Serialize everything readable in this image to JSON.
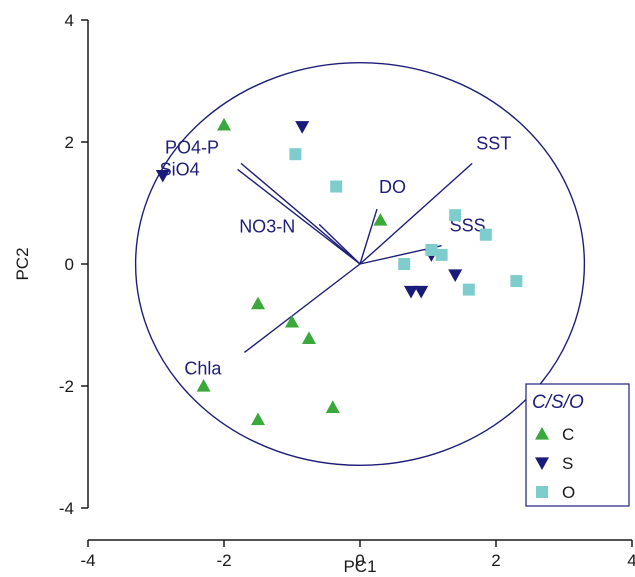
{
  "chart_data": {
    "type": "scatter",
    "title": "",
    "xlabel": "PC1",
    "ylabel": "PC2",
    "xlim": [
      -4,
      4
    ],
    "ylim": [
      -4,
      4
    ],
    "x_ticks": [
      "-4",
      "-2",
      "0",
      "2",
      "4"
    ],
    "y_ticks": [
      "-4",
      "-2",
      "0",
      "2",
      "4"
    ],
    "grid": false,
    "legend_position": "bottom-right",
    "legend_title": "C/S/O",
    "circle_radius": 3.3,
    "series": [
      {
        "name": "C",
        "marker": "triangle-up",
        "color": "#3aa83a",
        "points": [
          [
            -2.0,
            2.28
          ],
          [
            0.3,
            0.72
          ],
          [
            -1.5,
            -0.65
          ],
          [
            -1.0,
            -0.95
          ],
          [
            -0.75,
            -1.22
          ],
          [
            -2.3,
            -2.0
          ],
          [
            -1.5,
            -2.55
          ],
          [
            -0.4,
            -2.35
          ]
        ]
      },
      {
        "name": "S",
        "marker": "triangle-down",
        "color": "#1a1a7a",
        "points": [
          [
            -0.85,
            2.25
          ],
          [
            -2.9,
            1.45
          ],
          [
            1.05,
            0.15
          ],
          [
            1.4,
            -0.18
          ],
          [
            0.75,
            -0.45
          ],
          [
            0.9,
            -0.45
          ]
        ]
      },
      {
        "name": "O",
        "marker": "square",
        "color": "#7fcccc",
        "points": [
          [
            -0.95,
            1.8
          ],
          [
            -0.35,
            1.27
          ],
          [
            1.4,
            0.8
          ],
          [
            1.85,
            0.48
          ],
          [
            1.05,
            0.23
          ],
          [
            1.2,
            0.15
          ],
          [
            0.65,
            0.0
          ],
          [
            1.6,
            -0.42
          ],
          [
            2.3,
            -0.28
          ]
        ]
      }
    ],
    "vectors": [
      {
        "label": "PO4-P",
        "x": -1.75,
        "y": 1.65
      },
      {
        "label": "SiO4",
        "x": -1.8,
        "y": 1.55
      },
      {
        "label": "NO3-N",
        "x": -0.6,
        "y": 0.65
      },
      {
        "label": "DO",
        "x": 0.25,
        "y": 0.9
      },
      {
        "label": "SST",
        "x": 1.65,
        "y": 1.65
      },
      {
        "label": "SSS",
        "x": 1.2,
        "y": 0.3
      },
      {
        "label": "Chla",
        "x": -1.7,
        "y": -1.45
      }
    ],
    "colors": {
      "axis": "#1a1a1a",
      "circle": "#1e1e78",
      "vector": "#1e1e78",
      "legend_border": "#1e1e78"
    }
  }
}
